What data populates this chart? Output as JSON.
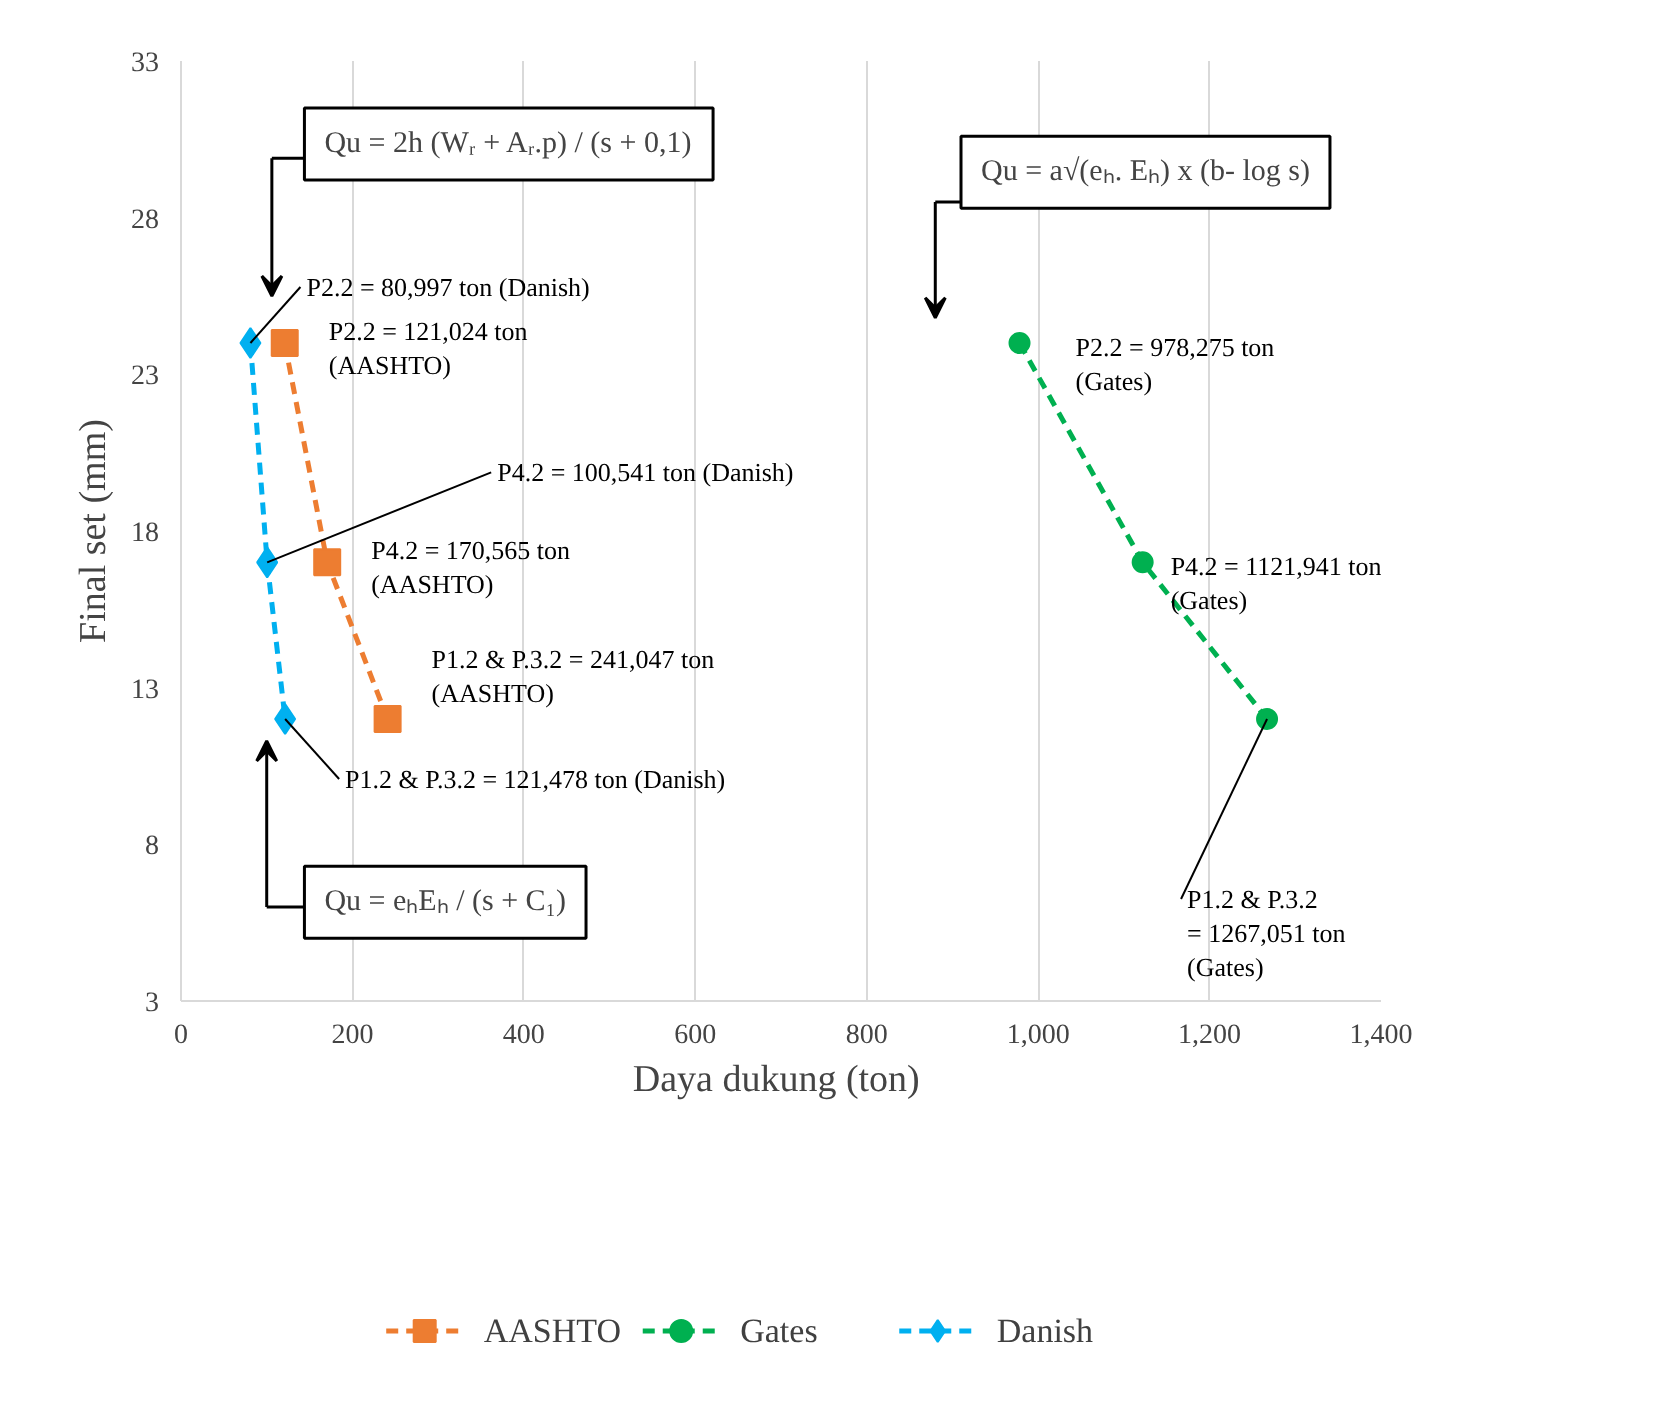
{
  "chart_data": {
    "type": "line",
    "xlabel": "Daya dukung  (ton)",
    "ylabel": "Final set (mm)",
    "xlim": [
      0,
      1400
    ],
    "xticks": [
      0,
      200,
      400,
      600,
      800,
      {
        "value": 1000,
        "label": "1,000"
      },
      {
        "value": 1200,
        "label": "1,200"
      },
      {
        "value": 1400,
        "label": "1,400"
      }
    ],
    "ylim": [
      3,
      33
    ],
    "yticks": [
      3,
      8,
      13,
      18,
      23,
      28,
      33
    ],
    "grid": "x",
    "legend": "bottom",
    "line_style": "dashed",
    "series": [
      {
        "name": "AASHTO",
        "color": "#ed7d31",
        "marker": "square",
        "x": [
          121.024,
          170.565,
          241.047
        ],
        "values": [
          24,
          17,
          12
        ]
      },
      {
        "name": "Gates",
        "color": "#00b050",
        "marker": "circle",
        "x": [
          978.275,
          1121.941,
          1267.051
        ],
        "values": [
          24,
          17,
          12
        ]
      },
      {
        "name": "Danish",
        "color": "#00b0f0",
        "marker": "diamond",
        "x": [
          80.997,
          100.541,
          121.478
        ],
        "values": [
          24,
          17,
          12
        ]
      }
    ],
    "annotations": [
      {
        "text": "P2.2 = 121,024 ton\n(AASHTO)",
        "x": 121.024,
        "y": 24
      },
      {
        "text": "P4.2 = 170,565 ton\n(AASHTO)",
        "x": 170.565,
        "y": 17
      },
      {
        "text": "P1.2 & P.3.2 = 241,047 ton\n(AASHTO)",
        "x": 241.047,
        "y": 12
      },
      {
        "text": "P2.2 = 978,275 ton\n(Gates)",
        "x": 978.275,
        "y": 24
      },
      {
        "text": "P4.2 = 1121,941 ton\n(Gates)",
        "x": 1121.941,
        "y": 17
      },
      {
        "text": "P1.2 & P.3.2\n= 1267,051 ton\n(Gates)",
        "x": 1267.051,
        "y": 12
      },
      {
        "text": "P2.2 = 80,997 ton (Danish)",
        "x": 80.997,
        "y": 24
      },
      {
        "text": "P4.2 = 100,541 ton (Danish)",
        "x": 100.541,
        "y": 17
      },
      {
        "text": "P1.2 & P.3.2 = 121,478 ton (Danish)",
        "x": 121.478,
        "y": 12
      },
      "Qu = 2h (Wᵣ + Aᵣ.p) / (s + 0,1)",
      "Qu = a√(eₕ. Eₕ) x (b- log s)",
      "Qu = eₕEₕ / (s + C₁)"
    ]
  }
}
